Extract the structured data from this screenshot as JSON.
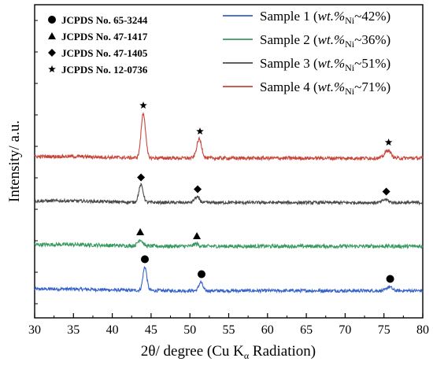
{
  "chart_data": {
    "type": "line",
    "xlabel": {
      "prefix": "2θ/ degree (Cu K",
      "sub": "α",
      "suffix": " Radiation)"
    },
    "ylabel": "Intensity/ a.u.",
    "xlim": [
      30,
      80
    ],
    "x_ticks": [
      "30",
      "35",
      "40",
      "45",
      "50",
      "55",
      "60",
      "65",
      "70",
      "75",
      "80"
    ],
    "y_ticks_visible": false,
    "grid": false,
    "series": [
      {
        "name": "Sample 1",
        "wt_prefix": "wt.%",
        "wt_sub": "Ni",
        "wt_value": "~42%",
        "color": "#3563c9",
        "offset": 0,
        "baseline": 10,
        "noise": 1.6,
        "peaks": [
          {
            "x": 44.2,
            "h": 30,
            "w": 0.35
          },
          {
            "x": 51.4,
            "h": 11,
            "w": 0.35
          },
          {
            "x": 75.7,
            "h": 5,
            "w": 0.45
          }
        ],
        "marker": "circle"
      },
      {
        "name": "Sample 2",
        "wt_prefix": "wt.%",
        "wt_sub": "Ni",
        "wt_value": "~36%",
        "color": "#3a9a62",
        "offset": 55,
        "baseline": 12,
        "noise": 1.8,
        "peaks": [
          {
            "x": 43.6,
            "h": 8,
            "w": 0.45
          },
          {
            "x": 50.8,
            "h": 3,
            "w": 0.45
          }
        ],
        "marker": "triangle"
      },
      {
        "name": "Sample 3",
        "wt_prefix": "wt.%",
        "wt_sub": "Ni",
        "wt_value": "~51%",
        "color": "#4a4a4a",
        "offset": 110,
        "baseline": 10,
        "noise": 1.5,
        "peaks": [
          {
            "x": 43.7,
            "h": 22,
            "w": 0.4
          },
          {
            "x": 50.9,
            "h": 7,
            "w": 0.45
          },
          {
            "x": 75.2,
            "h": 4,
            "w": 0.5
          }
        ],
        "marker": "diamond"
      },
      {
        "name": "Sample 4",
        "wt_prefix": "wt.%",
        "wt_sub": "Ni",
        "wt_value": "~71%",
        "color": "#c9453a",
        "offset": 165,
        "baseline": 12,
        "noise": 1.7,
        "peaks": [
          {
            "x": 44.0,
            "h": 57,
            "w": 0.4
          },
          {
            "x": 51.2,
            "h": 24,
            "w": 0.45
          },
          {
            "x": 75.5,
            "h": 10,
            "w": 0.55
          }
        ],
        "marker": "star"
      }
    ],
    "reference_markers": [
      {
        "symbol": "circle",
        "x": [
          44.2,
          51.5,
          75.8
        ]
      },
      {
        "symbol": "triangle",
        "x": [
          43.6,
          50.9
        ]
      },
      {
        "symbol": "diamond",
        "x": [
          43.7,
          51.0,
          75.3
        ]
      },
      {
        "symbol": "star",
        "x": [
          44.0,
          51.3,
          75.6
        ]
      }
    ],
    "reference_legend": [
      {
        "symbol": "circle",
        "label": "JCPDS No. 65-3244"
      },
      {
        "symbol": "triangle",
        "label": "JCPDS No. 47-1417"
      },
      {
        "symbol": "diamond",
        "label": "JCPDS No. 47-1405"
      },
      {
        "symbol": "star",
        "label": "JCPDS No. 12-0736"
      }
    ]
  }
}
